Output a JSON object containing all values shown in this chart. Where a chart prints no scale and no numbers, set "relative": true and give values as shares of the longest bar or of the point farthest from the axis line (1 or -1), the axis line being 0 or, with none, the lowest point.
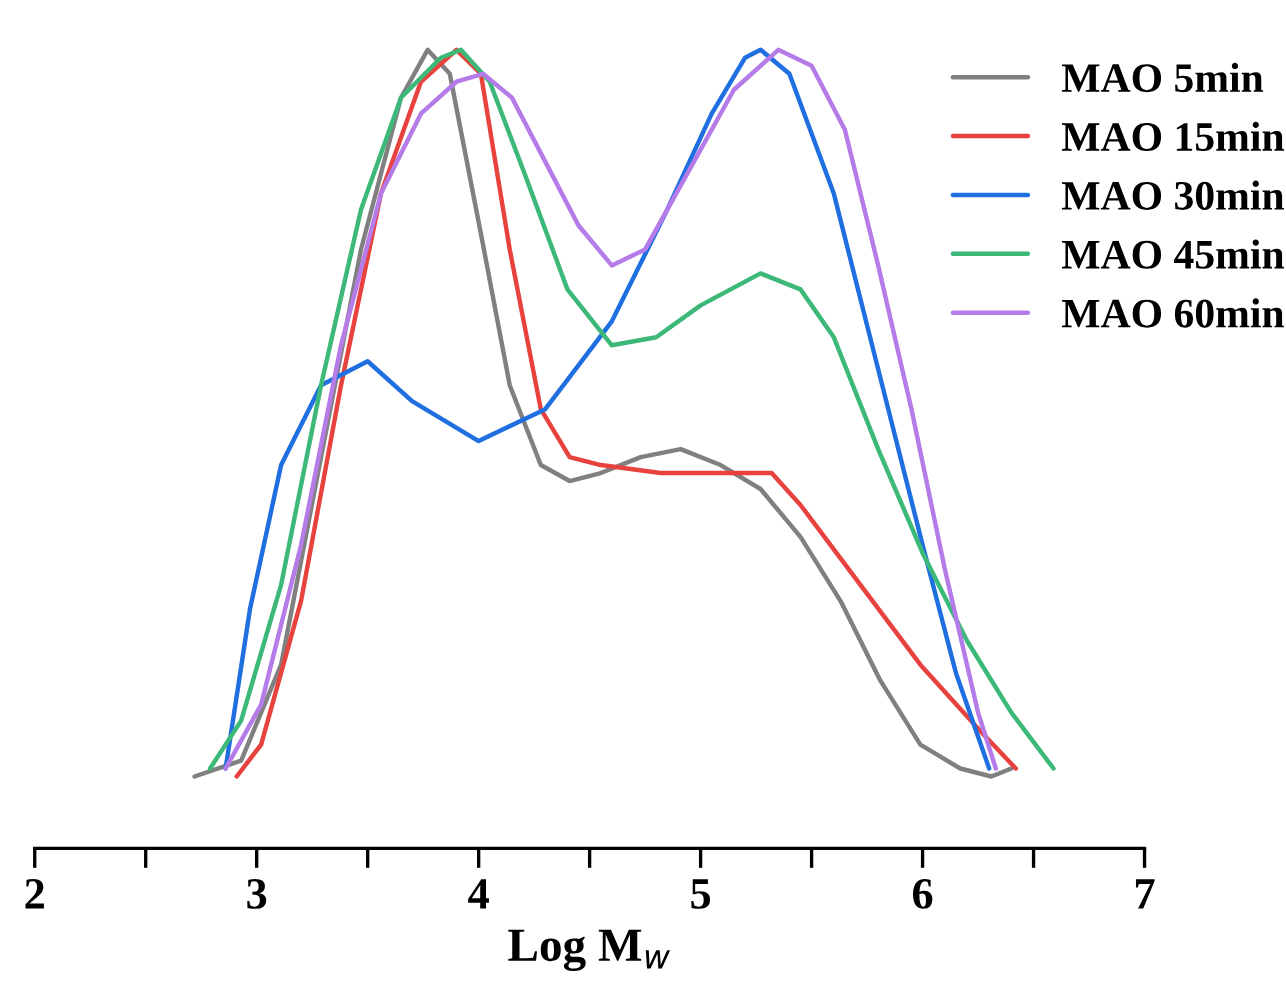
{
  "chart_data": {
    "type": "line",
    "xlabel": "Log M$_{w}$",
    "relative": true,
    "xlim": [
      2,
      7
    ],
    "xticks": [
      2,
      {
        "value": 2.5,
        "label": null
      },
      3,
      {
        "value": 3.5,
        "label": null
      },
      4,
      {
        "value": 4.5,
        "label": null
      },
      5,
      {
        "value": 5.5,
        "label": null
      },
      6,
      {
        "value": 6.5,
        "label": null
      },
      7
    ],
    "legend": "top right",
    "grid": false,
    "marker": "none",
    "line_style": "solid",
    "tick_labels": "x",
    "series": [
      {
        "name": "MAO 5min",
        "color": "#808080",
        "x": [
          2.72,
          2.93,
          3.11,
          3.29,
          3.47,
          3.65,
          3.77,
          3.87,
          4.01,
          4.14,
          4.28,
          4.41,
          4.55,
          4.73,
          4.91,
          5.09,
          5.27,
          5.45,
          5.63,
          5.81,
          5.99,
          6.17,
          6.31,
          6.4
        ],
        "values": [
          0.09,
          0.11,
          0.23,
          0.49,
          0.75,
          0.94,
          1.0,
          0.97,
          0.77,
          0.58,
          0.48,
          0.46,
          0.47,
          0.49,
          0.5,
          0.48,
          0.45,
          0.39,
          0.31,
          0.21,
          0.13,
          0.1,
          0.09,
          0.1
        ]
      },
      {
        "name": "MAO 15min",
        "color": "#e8423f",
        "x": [
          2.91,
          3.02,
          3.2,
          3.38,
          3.56,
          3.74,
          3.9,
          4.01,
          4.14,
          4.28,
          4.41,
          4.55,
          4.82,
          5.09,
          5.32,
          5.45,
          5.72,
          5.99,
          6.26,
          6.42
        ],
        "values": [
          0.09,
          0.13,
          0.31,
          0.58,
          0.82,
          0.96,
          1.0,
          0.97,
          0.75,
          0.55,
          0.49,
          0.48,
          0.47,
          0.47,
          0.47,
          0.43,
          0.33,
          0.23,
          0.147,
          0.1
        ]
      },
      {
        "name": "MAO 30min",
        "color": "#1f6fe0",
        "x": [
          2.86,
          2.97,
          3.11,
          3.29,
          3.5,
          3.7,
          4.0,
          4.3,
          4.6,
          4.85,
          5.05,
          5.2,
          5.27,
          5.4,
          5.6,
          5.8,
          6.0,
          6.15,
          6.3
        ],
        "values": [
          0.1,
          0.3,
          0.48,
          0.58,
          0.61,
          0.56,
          0.51,
          0.55,
          0.66,
          0.8,
          0.92,
          0.99,
          1.0,
          0.97,
          0.82,
          0.6,
          0.38,
          0.22,
          0.1
        ]
      },
      {
        "name": "MAO 45min",
        "color": "#3cb878",
        "x": [
          2.79,
          2.93,
          3.11,
          3.29,
          3.47,
          3.65,
          3.83,
          3.92,
          4.05,
          4.2,
          4.4,
          4.6,
          4.8,
          5.0,
          5.27,
          5.45,
          5.6,
          5.8,
          6.0,
          6.2,
          6.4,
          6.59
        ],
        "values": [
          0.1,
          0.16,
          0.33,
          0.58,
          0.8,
          0.94,
          0.99,
          1.0,
          0.96,
          0.85,
          0.7,
          0.63,
          0.64,
          0.68,
          0.72,
          0.7,
          0.64,
          0.5,
          0.37,
          0.26,
          0.17,
          0.1
        ]
      },
      {
        "name": "MAO 60min",
        "color": "#b57be8",
        "x": [
          2.86,
          3.02,
          3.2,
          3.38,
          3.56,
          3.74,
          3.9,
          4.02,
          4.15,
          4.3,
          4.45,
          4.6,
          4.75,
          4.95,
          5.15,
          5.35,
          5.5,
          5.65,
          5.8,
          5.95,
          6.1,
          6.25,
          6.33
        ],
        "values": [
          0.1,
          0.18,
          0.38,
          0.63,
          0.82,
          0.92,
          0.96,
          0.97,
          0.94,
          0.86,
          0.78,
          0.73,
          0.75,
          0.85,
          0.95,
          1.0,
          0.98,
          0.9,
          0.73,
          0.55,
          0.35,
          0.17,
          0.1
        ]
      }
    ]
  }
}
